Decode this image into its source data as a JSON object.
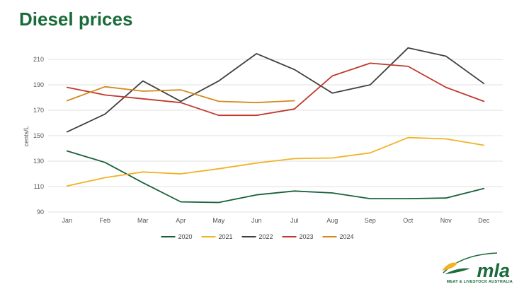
{
  "page": {
    "title": "Diesel prices"
  },
  "logo": {
    "wordmark": "mla",
    "tagline": "MEAT & LIVESTOCK AUSTRALIA",
    "colors": {
      "green": "#1a6b3a",
      "yellow": "#f0b323"
    }
  },
  "chart_data": {
    "type": "line",
    "title": "",
    "xlabel": "",
    "ylabel": "cents/L",
    "ylim": [
      90,
      220
    ],
    "yticks": [
      90,
      110,
      130,
      150,
      170,
      190,
      210
    ],
    "grid": true,
    "legend_position": "bottom",
    "categories": [
      "Jan",
      "Feb",
      "Mar",
      "Apr",
      "May",
      "Jun",
      "Jul",
      "Aug",
      "Sep",
      "Oct",
      "Nov",
      "Dec"
    ],
    "series": [
      {
        "name": "2020",
        "color": "#16613a",
        "values": [
          138,
          129,
          113,
          98,
          97.5,
          103.5,
          106.5,
          105,
          100.5,
          100.5,
          101,
          108.5
        ]
      },
      {
        "name": "2021",
        "color": "#f0b323",
        "values": [
          110.5,
          117,
          121.5,
          120,
          124,
          128.5,
          132,
          132.5,
          136.5,
          148.5,
          147.5,
          142.5
        ]
      },
      {
        "name": "2022",
        "color": "#404040",
        "values": [
          153,
          167,
          193,
          177,
          193,
          214.5,
          202,
          183.5,
          190,
          219,
          212.5,
          191
        ]
      },
      {
        "name": "2023",
        "color": "#c0392b",
        "values": [
          188,
          182,
          179,
          176,
          166,
          166,
          171,
          197,
          207,
          204.5,
          188,
          177
        ]
      },
      {
        "name": "2024",
        "color": "#d4891c",
        "values": [
          177.5,
          188.5,
          185,
          186,
          177,
          176,
          177.5,
          null,
          null,
          null,
          null,
          null
        ]
      }
    ]
  }
}
